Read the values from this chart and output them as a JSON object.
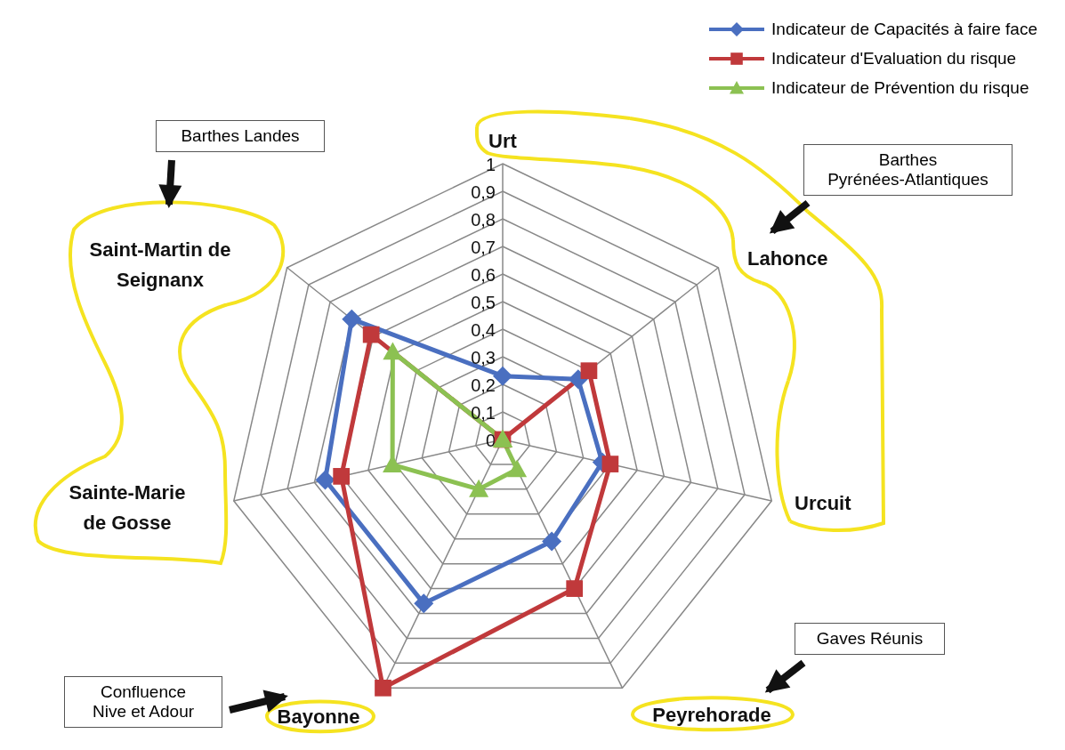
{
  "chart_data": {
    "type": "radar",
    "categories": [
      "Urt",
      "Lahonce",
      "Urcuit",
      "Peyrehorade",
      "Bayonne",
      "Sainte-Marie de Gosse",
      "Saint-Martin de Seignanx"
    ],
    "series": [
      {
        "name": "Indicateur de Capacités à faire face",
        "color": "#4a6fc0",
        "marker": "diamond",
        "values": [
          0.23,
          0.35,
          0.37,
          0.41,
          0.66,
          0.66,
          0.7
        ]
      },
      {
        "name": "Indicateur d'Evaluation du risque",
        "color": "#c0393b",
        "marker": "square",
        "values": [
          0,
          0.4,
          0.4,
          0.6,
          1,
          0.6,
          0.61
        ]
      },
      {
        "name": "Indicateur de Prévention du risque",
        "color": "#8cc152",
        "marker": "triangle",
        "values": [
          0,
          0,
          0,
          0.12,
          0.2,
          0.41,
          0.51
        ]
      }
    ],
    "ylim": [
      0,
      1
    ],
    "yticks": [
      0,
      {
        "value": 0.1,
        "label": "0,1"
      },
      {
        "value": 0.2,
        "label": "0,2"
      },
      {
        "value": 0.3,
        "label": "0,3"
      },
      {
        "value": 0.4,
        "label": "0,4"
      },
      {
        "value": 0.5,
        "label": "0,5"
      },
      {
        "value": 0.6,
        "label": "0,6"
      },
      {
        "value": 0.7,
        "label": "0,7"
      },
      {
        "value": 0.8,
        "label": "0,8"
      },
      {
        "value": 0.9,
        "label": "0,9"
      },
      1
    ],
    "grid": true,
    "legend": "top right",
    "line_style": "solid",
    "annotations": [
      "Barthes Landes",
      "Barthes Pyrénées-Atlantiques",
      "Gaves Réunis",
      "Confluence Nive et Adour"
    ]
  }
}
